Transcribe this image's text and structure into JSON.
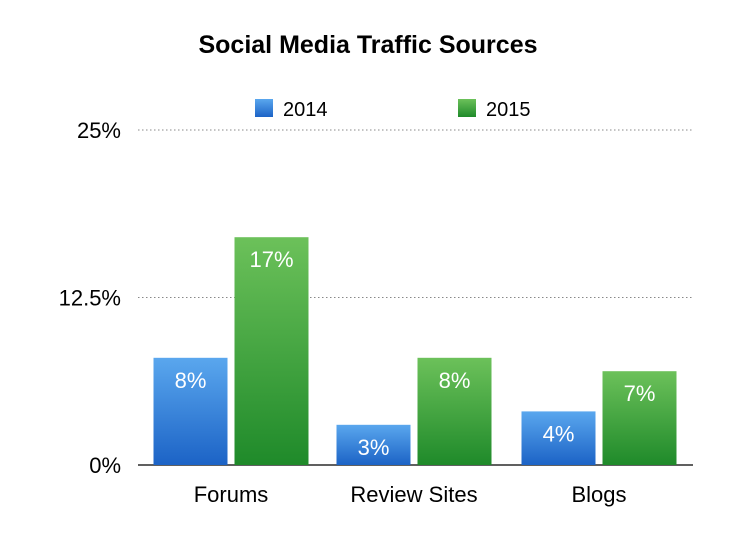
{
  "chart_data": {
    "type": "bar",
    "title": "Social Media Traffic Sources",
    "categories": [
      "Forums",
      "Review Sites",
      "Blogs"
    ],
    "series": [
      {
        "name": "2014",
        "values": [
          8,
          3,
          4
        ],
        "labels": [
          "8%",
          "3%",
          "4%"
        ],
        "color_top": "#5aa7ee",
        "color_bottom": "#1c63c6"
      },
      {
        "name": "2015",
        "values": [
          17,
          8,
          7
        ],
        "labels": [
          "17%",
          "8%",
          "7%"
        ],
        "color_top": "#6cc15a",
        "color_bottom": "#1f8a2a"
      }
    ],
    "ylim": [
      0,
      25
    ],
    "yticks": [
      0,
      12.5,
      25
    ],
    "ytick_labels": [
      "0%",
      "12.5%",
      "25%"
    ],
    "xlabel": "",
    "ylabel": "",
    "grid": true,
    "legend_position": "top"
  }
}
